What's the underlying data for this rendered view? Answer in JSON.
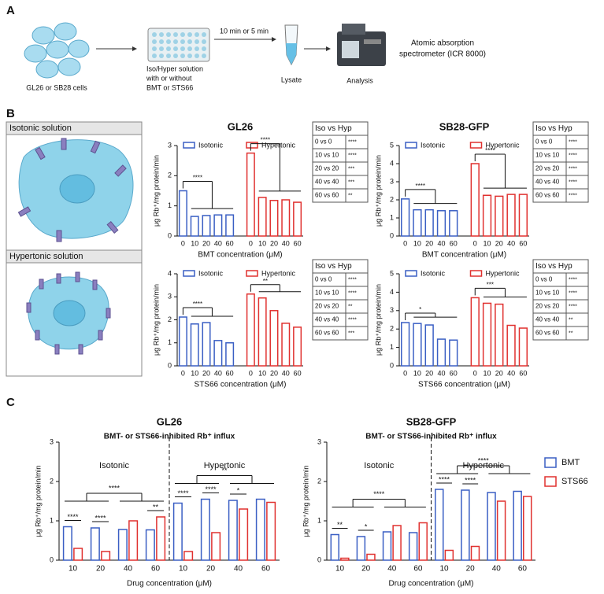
{
  "figure": {
    "panels": [
      "A",
      "B",
      "C"
    ]
  },
  "panel_a": {
    "cells": "GL26 or SB28 cells",
    "solution": [
      "Iso/Hyper solution",
      "with or without",
      "BMT or STS66"
    ],
    "time": "10 min or 5 min",
    "lysate": "Lysate",
    "analysis": "Analysis",
    "instrument": [
      "Atomic absorption",
      "spectrometer (ICR 8000)"
    ]
  },
  "panel_b": {
    "isotonic": "Isotonic solution",
    "hypertonic": "Hypertonic solution"
  },
  "chart_data": [
    {
      "type": "bar",
      "title": "GL26",
      "xlabel": "BMT concentration (μM)",
      "ylabel": "μg Rb⁺/mg protein/min",
      "categories": [
        "0",
        "10",
        "20",
        "40",
        "60"
      ],
      "series": [
        {
          "name": "Isotonic",
          "color": "#3a5fc4",
          "values": [
            1.5,
            0.65,
            0.68,
            0.7,
            0.7
          ]
        },
        {
          "name": "Hypertonic",
          "color": "#e0312f",
          "values": [
            2.75,
            1.28,
            1.18,
            1.2,
            1.12
          ]
        }
      ],
      "ylim": [
        0,
        3
      ],
      "yticks": [
        0,
        1,
        2,
        3
      ],
      "brackets": [
        "****",
        "****"
      ],
      "table": {
        "header": "Iso vs Hyp",
        "rows": [
          [
            "0 vs 0",
            "****"
          ],
          [
            "10 vs 10",
            "****"
          ],
          [
            "20 vs 20",
            "***"
          ],
          [
            "40 vs 40",
            "***"
          ],
          [
            "60 vs 60",
            "**"
          ]
        ]
      }
    },
    {
      "type": "bar",
      "title": "SB28-GFP",
      "xlabel": "BMT concentration (μM)",
      "ylabel": "μg Rb⁺/mg protein/min",
      "categories": [
        "0",
        "10",
        "20",
        "40",
        "60"
      ],
      "series": [
        {
          "name": "Isotonic",
          "color": "#3a5fc4",
          "values": [
            2.05,
            1.45,
            1.45,
            1.4,
            1.4
          ]
        },
        {
          "name": "Hypertonic",
          "color": "#e0312f",
          "values": [
            4.0,
            2.25,
            2.2,
            2.3,
            2.3
          ]
        }
      ],
      "ylim": [
        0,
        5
      ],
      "yticks": [
        0,
        1,
        2,
        3,
        4,
        5
      ],
      "brackets": [
        "****",
        "****"
      ],
      "table": {
        "header": "Iso vs Hyp",
        "rows": [
          [
            "0 vs 0",
            "****"
          ],
          [
            "10 vs 10",
            "****"
          ],
          [
            "20 vs 20",
            "****"
          ],
          [
            "40 vs 40",
            "****"
          ],
          [
            "60 vs 60",
            "****"
          ]
        ]
      }
    },
    {
      "type": "bar",
      "xlabel": "STS66 concentration (μM)",
      "ylabel": "μg Rb⁺/mg protein/min",
      "categories": [
        "0",
        "10",
        "20",
        "40",
        "60"
      ],
      "series": [
        {
          "name": "Isotonic",
          "color": "#3a5fc4",
          "values": [
            2.12,
            1.82,
            1.88,
            1.1,
            1.0
          ]
        },
        {
          "name": "Hypertonic",
          "color": "#e0312f",
          "values": [
            3.12,
            2.95,
            2.4,
            1.85,
            1.68
          ]
        }
      ],
      "ylim": [
        0,
        4
      ],
      "yticks": [
        0,
        1,
        2,
        3,
        4
      ],
      "brackets": [
        "****",
        "**"
      ],
      "table": {
        "header": "Iso vs Hyp",
        "rows": [
          [
            "0 vs 0",
            "****"
          ],
          [
            "10 vs 10",
            "****"
          ],
          [
            "20 vs 20",
            "**"
          ],
          [
            "40 vs 40",
            "****"
          ],
          [
            "60 vs 60",
            "***"
          ]
        ]
      }
    },
    {
      "type": "bar",
      "xlabel": "STS66 concentration (μM)",
      "ylabel": "μg Rb⁺/mg protein/min",
      "categories": [
        "0",
        "10",
        "20",
        "40",
        "60"
      ],
      "series": [
        {
          "name": "Isotonic",
          "color": "#3a5fc4",
          "values": [
            2.35,
            2.3,
            2.22,
            1.45,
            1.4
          ]
        },
        {
          "name": "Hypertonic",
          "color": "#e0312f",
          "values": [
            3.7,
            3.4,
            3.35,
            2.2,
            2.05
          ]
        }
      ],
      "ylim": [
        0,
        5
      ],
      "yticks": [
        0,
        1,
        2,
        3,
        4,
        5
      ],
      "brackets": [
        "*",
        "***"
      ],
      "table": {
        "header": "Iso vs Hyp",
        "rows": [
          [
            "0 vs 0",
            "****"
          ],
          [
            "10 vs 10",
            "****"
          ],
          [
            "20 vs 20",
            "****"
          ],
          [
            "40 vs 40",
            "**"
          ],
          [
            "60 vs 60",
            "**"
          ]
        ]
      }
    },
    {
      "type": "bar",
      "title": "GL26",
      "subtitle": "BMT- or STS66-inhibited Rb⁺ influx",
      "xlabel": "Drug concentration (μM)",
      "ylabel": "μg Rb⁺/mg protein/min",
      "groups": [
        "Isotonic",
        "Hypertonic"
      ],
      "categories": [
        "10",
        "20",
        "40",
        "60",
        "10",
        "20",
        "40",
        "60"
      ],
      "series": [
        {
          "name": "BMT",
          "color": "#3a5fc4",
          "values": [
            0.85,
            0.82,
            0.78,
            0.77,
            1.45,
            1.55,
            1.52,
            1.55
          ]
        },
        {
          "name": "STS66",
          "color": "#e0312f",
          "values": [
            0.3,
            0.22,
            1.0,
            1.1,
            0.22,
            0.7,
            1.3,
            1.47
          ]
        }
      ],
      "ylim": [
        0,
        3
      ],
      "yticks": [
        0,
        1,
        2,
        3
      ],
      "pair_labels": [
        "****",
        "****",
        null,
        "**",
        "****",
        "****",
        "*",
        null
      ],
      "bracket_labels": [
        "****",
        "**"
      ]
    },
    {
      "type": "bar",
      "title": "SB28-GFP",
      "subtitle": "BMT- or STS66-inhibited Rb⁺ influx",
      "xlabel": "Drug concentration (μM)",
      "ylabel": "μg Rb⁺/mg protein/min",
      "groups": [
        "Isotonic",
        "Hypertonic"
      ],
      "categories": [
        "10",
        "20",
        "40",
        "60",
        "10",
        "20",
        "40",
        "60"
      ],
      "series": [
        {
          "name": "BMT",
          "color": "#3a5fc4",
          "values": [
            0.65,
            0.6,
            0.72,
            0.7,
            1.8,
            1.78,
            1.72,
            1.75
          ]
        },
        {
          "name": "STS66",
          "color": "#e0312f",
          "values": [
            0.05,
            0.15,
            0.88,
            0.95,
            0.25,
            0.35,
            1.5,
            1.62
          ]
        }
      ],
      "ylim": [
        0,
        3
      ],
      "yticks": [
        0,
        1,
        2,
        3
      ],
      "pair_labels": [
        "**",
        "*",
        null,
        null,
        "****",
        "****",
        null,
        null
      ],
      "bracket_labels": [
        "****",
        "****"
      ],
      "legend": "right"
    }
  ]
}
